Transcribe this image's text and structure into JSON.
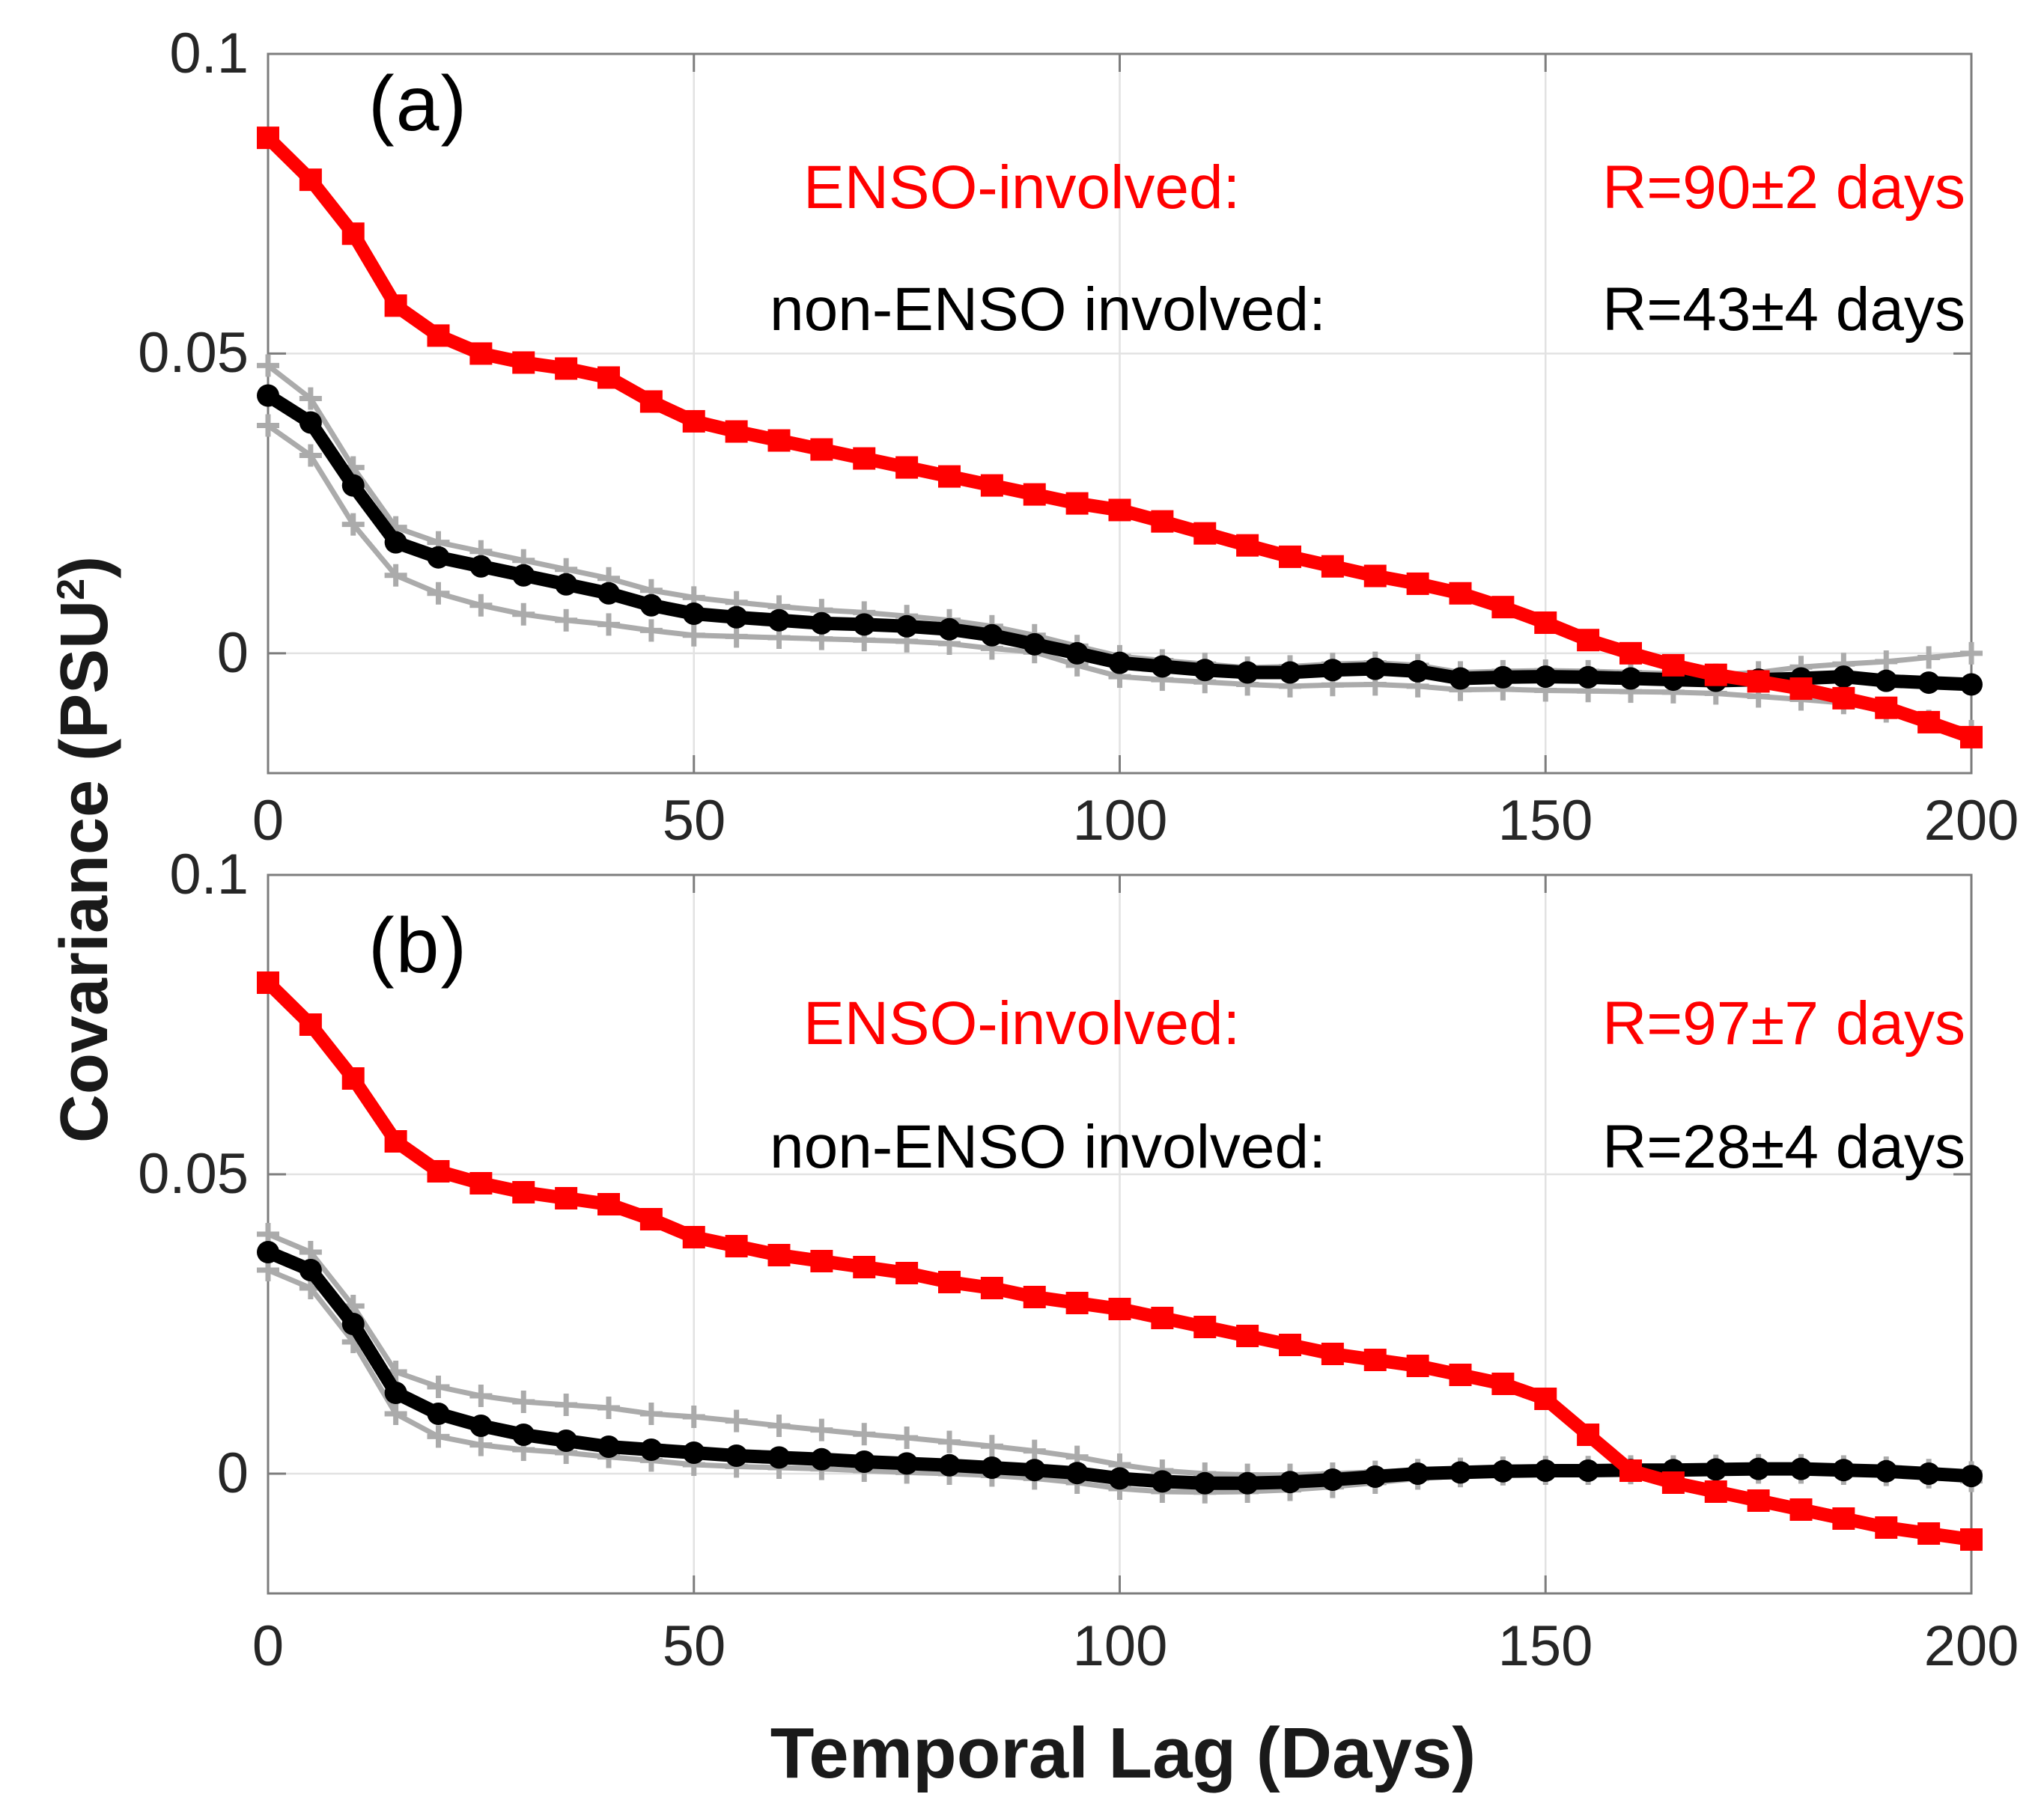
{
  "figure": {
    "ylabel_pre": "Covariance (PSU",
    "ylabel_sup": "2",
    "ylabel_post": ")",
    "xlabel": "Temporal Lag (Days)",
    "colors": {
      "enso_red": "#ff0000",
      "non_enso_black": "#000000",
      "error_bound_gray": "#ababab",
      "gridline": "#e2e2e2",
      "axis_box": "#7d7d7d",
      "tick_label": "#262626"
    }
  },
  "chart_data": [
    {
      "type": "line",
      "panel_label": "(a)",
      "legend": [
        {
          "label": "ENSO-involved:",
          "r_value": "R=90±2 days",
          "color": "#ff0000"
        },
        {
          "label": "non-ENSO involved:",
          "r_value": "R=43±4 days",
          "color": "#000000"
        }
      ],
      "xlim": [
        0,
        200
      ],
      "ylim": [
        -0.02,
        0.1
      ],
      "x_step": 5,
      "xtick_values": [
        0,
        50,
        100,
        150,
        200
      ],
      "xtick_labels": [
        "0",
        "50",
        "100",
        "150",
        "200"
      ],
      "ytick_values": [
        0.1,
        0.05,
        0
      ],
      "ytick_labels": [
        "0.1",
        "0.05",
        "0"
      ],
      "grid": true,
      "legend_position": "upper-right-inside",
      "series": [
        {
          "name": "ENSO-involved",
          "color": "#ff0000",
          "marker": "square",
          "values": [
            0.086,
            0.079,
            0.07,
            0.058,
            0.053,
            0.05,
            0.0485,
            0.0475,
            0.046,
            0.042,
            0.0387,
            0.037,
            0.0355,
            0.034,
            0.0325,
            0.031,
            0.0295,
            0.028,
            0.0265,
            0.025,
            0.0239,
            0.022,
            0.02,
            0.018,
            0.0161,
            0.0145,
            0.0129,
            0.0116,
            0.01,
            0.0077,
            0.0051,
            0.0022,
            0.0,
            -0.002,
            -0.0036,
            -0.0047,
            -0.0059,
            -0.0075,
            -0.0091,
            -0.0115,
            -0.014
          ]
        },
        {
          "name": "non-ENSO involved",
          "color": "#000000",
          "marker": "circle",
          "values": [
            0.043,
            0.0385,
            0.028,
            0.0185,
            0.016,
            0.0145,
            0.013,
            0.0115,
            0.01,
            0.008,
            0.0066,
            0.006,
            0.0055,
            0.005,
            0.0048,
            0.0045,
            0.004,
            0.003,
            0.0015,
            0.0,
            -0.0016,
            -0.0022,
            -0.0028,
            -0.0032,
            -0.0032,
            -0.0028,
            -0.0026,
            -0.003,
            -0.0042,
            -0.004,
            -0.0039,
            -0.004,
            -0.0042,
            -0.0044,
            -0.0046,
            -0.0044,
            -0.0042,
            -0.0039,
            -0.0046,
            -0.0049,
            -0.0052
          ]
        },
        {
          "name": "non-ENSO upper bound",
          "color": "#ababab",
          "marker": "plus",
          "values": [
            0.048,
            0.0425,
            0.031,
            0.021,
            0.0185,
            0.017,
            0.0155,
            0.014,
            0.0125,
            0.0105,
            0.0093,
            0.0085,
            0.0078,
            0.0072,
            0.0068,
            0.0062,
            0.0055,
            0.0045,
            0.003,
            0.0012,
            -0.0005,
            -0.0012,
            -0.0018,
            -0.0024,
            -0.0022,
            -0.0018,
            -0.0016,
            -0.002,
            -0.0032,
            -0.003,
            -0.0029,
            -0.003,
            -0.0032,
            -0.0034,
            -0.0036,
            -0.0032,
            -0.0023,
            -0.0018,
            -0.0014,
            -0.0007,
            0.0
          ],
          "role": "error-bound"
        },
        {
          "name": "non-ENSO lower bound",
          "color": "#ababab",
          "marker": "plus",
          "values": [
            0.038,
            0.033,
            0.0215,
            0.013,
            0.01,
            0.008,
            0.0065,
            0.0055,
            0.0048,
            0.0038,
            0.003,
            0.0028,
            0.0026,
            0.0024,
            0.0022,
            0.002,
            0.0016,
            0.0008,
            0.0002,
            -0.002,
            -0.0039,
            -0.0044,
            -0.0048,
            -0.0052,
            -0.0055,
            -0.0053,
            -0.0052,
            -0.0055,
            -0.0061,
            -0.006,
            -0.0062,
            -0.0063,
            -0.0064,
            -0.0065,
            -0.0067,
            -0.0072,
            -0.0077,
            -0.0083,
            -0.0097,
            -0.0113,
            -0.013
          ],
          "role": "error-bound"
        }
      ]
    },
    {
      "type": "line",
      "panel_label": "(b)",
      "legend": [
        {
          "label": "ENSO-involved:",
          "r_value": "R=97±7 days",
          "color": "#ff0000"
        },
        {
          "label": "non-ENSO involved:",
          "r_value": "R=28±4 days",
          "color": "#000000"
        }
      ],
      "xlim": [
        0,
        200
      ],
      "ylim": [
        -0.02,
        0.1
      ],
      "x_step": 5,
      "xtick_values": [
        0,
        50,
        100,
        150,
        200
      ],
      "xtick_labels": [
        "0",
        "50",
        "100",
        "150",
        "200"
      ],
      "ytick_values": [
        0.1,
        0.05,
        0
      ],
      "ytick_labels": [
        "0.1",
        "0.05",
        "0"
      ],
      "grid": true,
      "legend_position": "upper-right-inside",
      "series": [
        {
          "name": "ENSO-involved",
          "color": "#ff0000",
          "marker": "square",
          "values": [
            0.082,
            0.075,
            0.066,
            0.0555,
            0.0505,
            0.0485,
            0.047,
            0.046,
            0.045,
            0.0425,
            0.0395,
            0.038,
            0.0365,
            0.0355,
            0.0345,
            0.0335,
            0.032,
            0.031,
            0.0295,
            0.0285,
            0.0275,
            0.026,
            0.0245,
            0.023,
            0.0215,
            0.02,
            0.019,
            0.018,
            0.0165,
            0.015,
            0.0125,
            0.0065,
            0.0005,
            -0.0015,
            -0.003,
            -0.0045,
            -0.006,
            -0.0075,
            -0.009,
            -0.01,
            -0.011
          ]
        },
        {
          "name": "non-ENSO involved",
          "color": "#000000",
          "marker": "circle",
          "values": [
            0.037,
            0.034,
            0.025,
            0.0135,
            0.01,
            0.008,
            0.0065,
            0.0055,
            0.0045,
            0.004,
            0.0035,
            0.003,
            0.0027,
            0.0024,
            0.002,
            0.0017,
            0.0014,
            0.001,
            0.0006,
            0.0001,
            -0.0008,
            -0.0013,
            -0.0016,
            -0.0016,
            -0.0014,
            -0.001,
            -0.0005,
            0.0,
            0.0002,
            0.0004,
            0.0005,
            0.0005,
            0.0006,
            0.0006,
            0.0007,
            0.0008,
            0.0008,
            0.0006,
            0.0004,
            0.0,
            -0.0004
          ]
        },
        {
          "name": "non-ENSO upper bound",
          "color": "#ababab",
          "marker": "plus",
          "values": [
            0.04,
            0.037,
            0.028,
            0.017,
            0.0145,
            0.013,
            0.012,
            0.0115,
            0.011,
            0.01,
            0.0095,
            0.0088,
            0.008,
            0.0073,
            0.0066,
            0.006,
            0.0053,
            0.0046,
            0.0038,
            0.0028,
            0.0015,
            0.0005,
            0.0,
            -0.0002,
            -0.0002,
            0.0,
            0.0003,
            0.0006,
            0.0008,
            0.001,
            0.0011,
            0.0011,
            0.0012,
            0.0012,
            0.0013,
            0.0014,
            0.0014,
            0.0012,
            0.001,
            0.0006,
            0.0002
          ],
          "role": "error-bound"
        },
        {
          "name": "non-ENSO lower bound",
          "color": "#ababab",
          "marker": "plus",
          "values": [
            0.034,
            0.031,
            0.022,
            0.01,
            0.0062,
            0.0048,
            0.004,
            0.0035,
            0.0028,
            0.0022,
            0.0015,
            0.0012,
            0.001,
            0.0008,
            0.0005,
            0.0002,
            0.0,
            -0.0003,
            -0.0008,
            -0.0015,
            -0.0025,
            -0.003,
            -0.0031,
            -0.003,
            -0.0027,
            -0.0022,
            -0.0015,
            -0.0008,
            -0.0004,
            -0.0001,
            0.0,
            0.0,
            0.0001,
            0.0001,
            0.0001,
            0.0002,
            0.0002,
            0.0,
            -0.0002,
            -0.0006,
            -0.0012
          ],
          "role": "error-bound"
        }
      ]
    }
  ]
}
